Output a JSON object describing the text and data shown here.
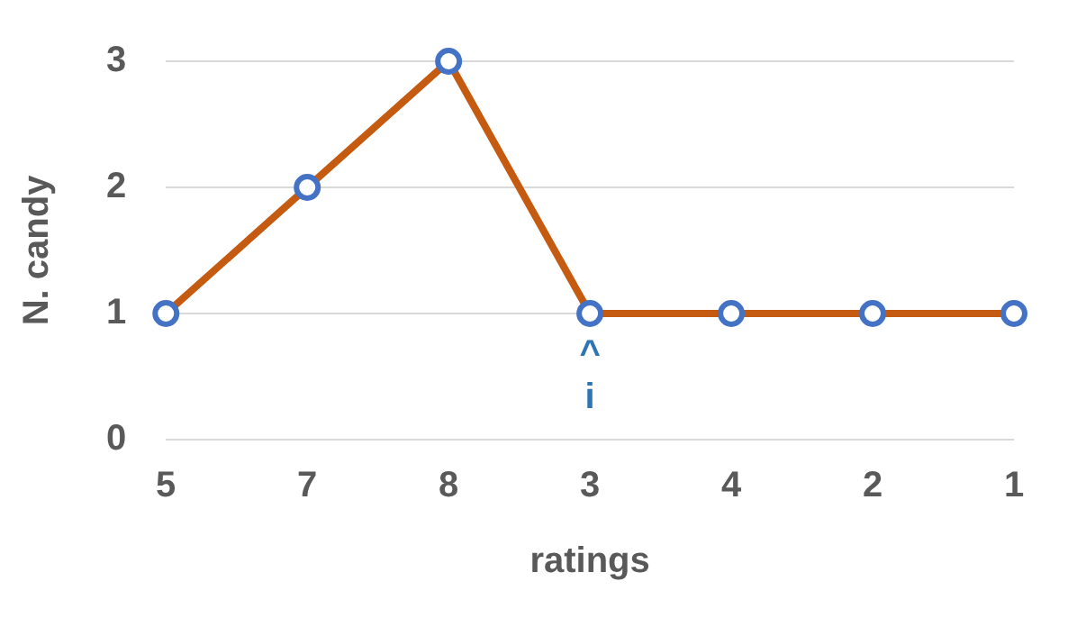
{
  "chart_data": {
    "type": "line",
    "xlabel": "ratings",
    "ylabel": "N. candy",
    "categories": [
      "5",
      "7",
      "8",
      "3",
      "4",
      "2",
      "1"
    ],
    "series": [
      {
        "color": "#c55a11",
        "values": [
          1,
          2,
          3,
          1,
          1,
          1,
          1
        ]
      }
    ],
    "ylim": [
      0,
      3
    ],
    "yticks": [
      0,
      1,
      2,
      3
    ],
    "grid": "y",
    "legend": false,
    "marker": "circle",
    "line_style": "solid",
    "annotations": [
      "^\ni"
    ]
  }
}
